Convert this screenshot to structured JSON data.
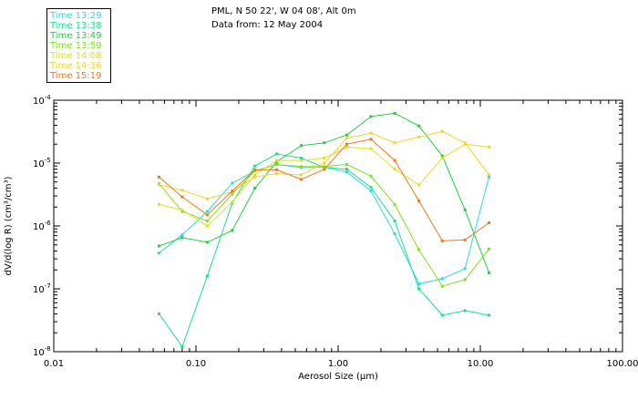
{
  "header": {
    "location": "PML, N 50 22', W 04 08', Alt 0m",
    "date": "Data from: 12 May 2004"
  },
  "chart_data": {
    "type": "line",
    "xlabel": "Aerosol Size (μm)",
    "ylabel": "dV/d(log R) (cm³/cm³)",
    "xscale": "log",
    "yscale": "log",
    "xlim": [
      0.01,
      100
    ],
    "ylim": [
      1e-08,
      0.0001
    ],
    "x_ticks": [
      {
        "v": 0.01,
        "label": "0.01"
      },
      {
        "v": 0.1,
        "label": "0.10"
      },
      {
        "v": 1,
        "label": "1.00"
      },
      {
        "v": 10,
        "label": "10.00"
      },
      {
        "v": 100,
        "label": "100.00"
      }
    ],
    "y_ticks": [
      {
        "v": 1e-08,
        "mant": "10",
        "exp": "-8"
      },
      {
        "v": 1e-07,
        "mant": "10",
        "exp": "-7"
      },
      {
        "v": 1e-06,
        "mant": "10",
        "exp": "-6"
      },
      {
        "v": 1e-05,
        "mant": "10",
        "exp": "-5"
      },
      {
        "v": 0.0001,
        "mant": "10",
        "exp": "-4"
      }
    ],
    "x": [
      0.055,
      0.08,
      0.12,
      0.18,
      0.26,
      0.37,
      0.55,
      0.8,
      1.15,
      1.7,
      2.5,
      3.7,
      5.4,
      7.8,
      11.5
    ],
    "legend_position": "top-left, outside plot",
    "series": [
      {
        "name": "Time 13:29",
        "color": "#30d8e0",
        "values": [
          3.7e-07,
          7.2e-07,
          1.7e-06,
          4.8e-06,
          7.5e-06,
          9.5e-06,
          8.5e-06,
          8.6e-06,
          7.2e-06,
          3.6e-06,
          7.5e-07,
          1.2e-07,
          1.45e-07,
          2.1e-07,
          6e-06
        ]
      },
      {
        "name": "Time 13:38",
        "color": "#18e090",
        "values": [
          4e-08,
          1.2e-08,
          1.6e-07,
          2.3e-06,
          9e-06,
          1.4e-05,
          1.2e-05,
          8.5e-06,
          8e-06,
          4.1e-06,
          1.2e-06,
          1e-07,
          3.8e-08,
          4.5e-08,
          3.8e-08
        ]
      },
      {
        "name": "Time 13:49",
        "color": "#20d040",
        "values": [
          4.8e-07,
          6.5e-07,
          5.5e-07,
          8.5e-07,
          4e-06,
          1.05e-05,
          1.9e-05,
          2.1e-05,
          2.8e-05,
          5.5e-05,
          6.2e-05,
          3.9e-05,
          1.3e-05,
          1.8e-06,
          1.8e-07
        ]
      },
      {
        "name": "Time 13:59",
        "color": "#80e020",
        "values": [
          4.7e-06,
          1.7e-06,
          1.2e-06,
          3.2e-06,
          7.5e-06,
          9.5e-06,
          8.8e-06,
          8.8e-06,
          9.5e-06,
          6.2e-06,
          2.2e-06,
          4.2e-07,
          1.1e-07,
          1.4e-07,
          4.3e-07
        ]
      },
      {
        "name": "Time 14:08",
        "color": "#e0e020",
        "values": [
          2.2e-06,
          1.8e-06,
          1e-06,
          2.4e-06,
          6.5e-06,
          1.1e-05,
          1.1e-05,
          1.2e-05,
          1.8e-05,
          1.7e-05,
          8e-06,
          4.5e-06,
          1.2e-05,
          2e-05,
          1.8e-05
        ]
      },
      {
        "name": "Time 14:36",
        "color": "#f8d028",
        "values": [
          4.5e-06,
          3.7e-06,
          2.7e-06,
          3.5e-06,
          6e-06,
          6.8e-06,
          6.5e-06,
          1e-05,
          2.5e-05,
          3e-05,
          2.1e-05,
          2.6e-05,
          3.2e-05,
          2.1e-05,
          6.5e-06
        ]
      },
      {
        "name": "Time 15:19",
        "color": "#f07818",
        "values": [
          6e-06,
          2.9e-06,
          1.5e-06,
          3.6e-06,
          7.8e-06,
          7.8e-06,
          5.5e-06,
          8e-06,
          2e-05,
          2.4e-05,
          1.1e-05,
          2.5e-06,
          5.8e-07,
          6e-07,
          1.12e-06
        ]
      }
    ]
  }
}
